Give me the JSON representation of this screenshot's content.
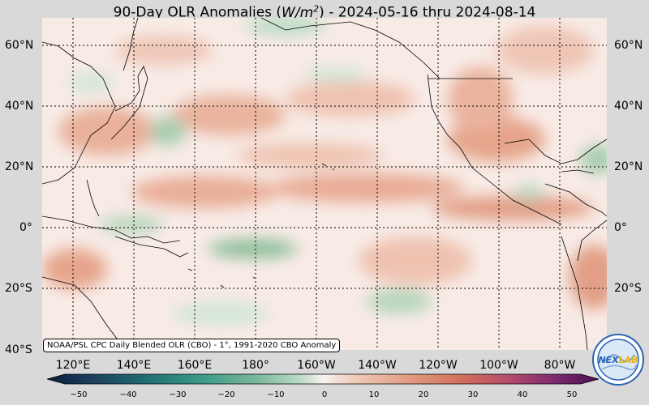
{
  "title": {
    "prefix": "90-Day OLR Anomalies (",
    "unit_base": "W/m",
    "unit_exp": "2",
    "suffix": ") - 2024-05-16 thru 2024-08-14"
  },
  "lat_labels": [
    "60°N",
    "40°N",
    "20°N",
    "0°",
    "20°S",
    "40°S"
  ],
  "lon_labels": [
    "120°E",
    "140°E",
    "160°E",
    "180°",
    "160°W",
    "140°W",
    "120°W",
    "100°W",
    "80°W"
  ],
  "credit": "NOAA/PSL CPC Daily Blended OLR (CBO) - 1°, 1991-2020 CBO Anomaly",
  "colorbar": {
    "ticks": [
      "−50",
      "−40",
      "−30",
      "−20",
      "−10",
      "0",
      "10",
      "20",
      "30",
      "40",
      "50"
    ],
    "colors": [
      "#0d1b3e",
      "#1c3f5c",
      "#1f6f73",
      "#3c9a86",
      "#7ab89b",
      "#bcdcc6",
      "#f7f1ee",
      "#f0c9b8",
      "#e19a80",
      "#d06a5a",
      "#b34b6e",
      "#7d2a6e",
      "#4a1050"
    ]
  },
  "logo": {
    "text": "NEXLAB",
    "colors": {
      "blue": "#2b63b5",
      "gold": "#f0b400"
    }
  },
  "map_colors": {
    "ocean_base": "#f8ebe6",
    "positive_light": "#f0c9b8",
    "positive_med": "#e6a58b",
    "negative_light": "#c9e0cd",
    "negative_med": "#8fbf9c"
  }
}
